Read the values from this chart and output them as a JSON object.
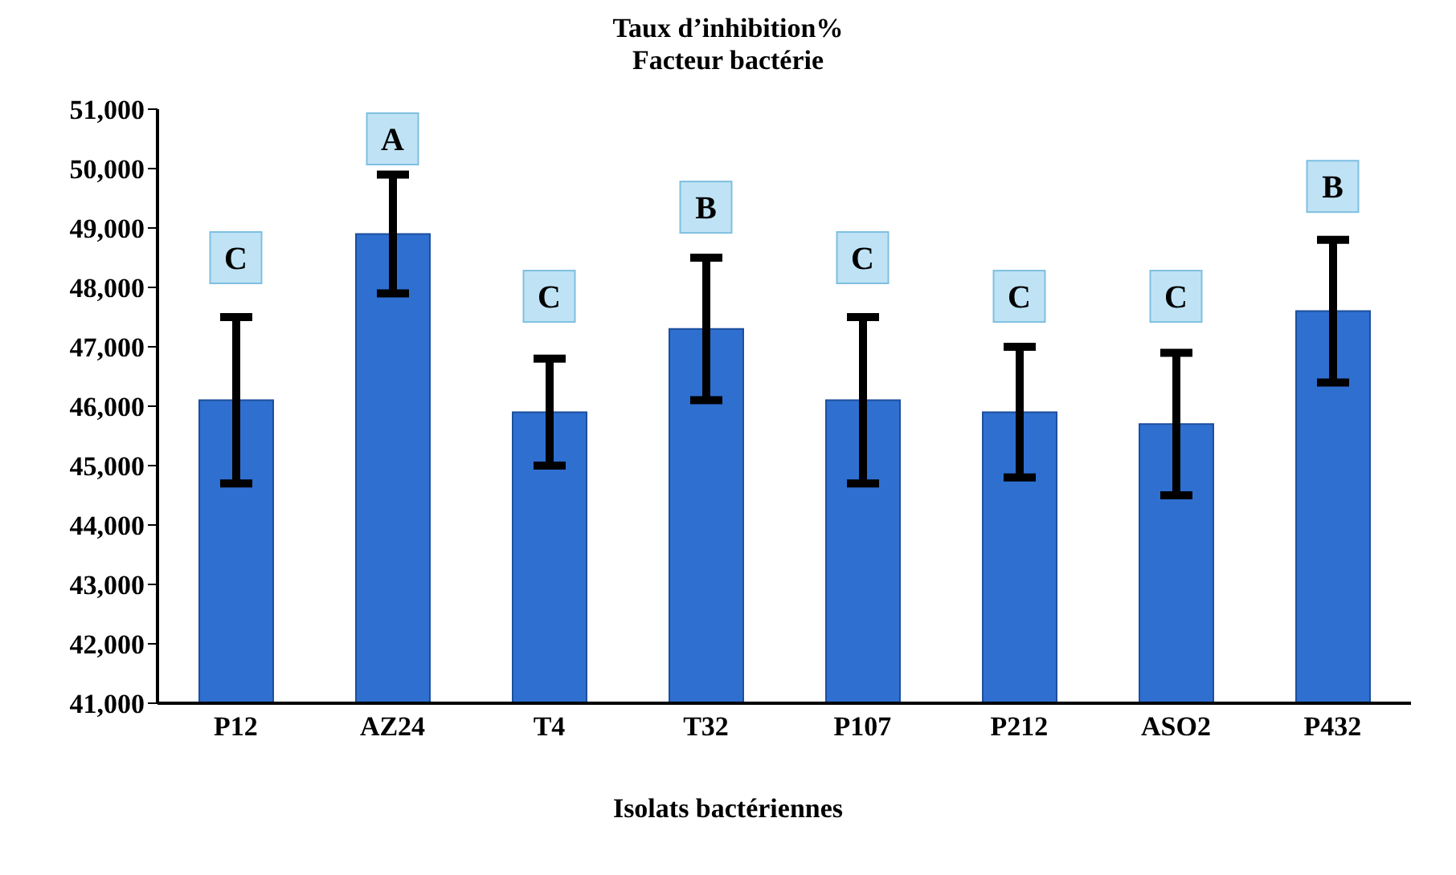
{
  "chart_data": {
    "type": "bar",
    "title": "Taux d’inhibition%",
    "subtitle": "Facteur bactérie",
    "xlabel": "Isolats bactériennes",
    "categories": [
      "P12",
      "AZ24",
      "T4",
      "T32",
      "P107",
      "P212",
      "ASO2",
      "P432"
    ],
    "values": [
      46100,
      48900,
      45900,
      47300,
      46100,
      45900,
      45700,
      47600
    ],
    "errors": [
      1400,
      1000,
      900,
      1200,
      1400,
      1100,
      1200,
      1200
    ],
    "color": "#2f6fd0",
    "ylim": [
      41000,
      51000
    ],
    "yticks": [
      {
        "value": 41000,
        "label": "41,000"
      },
      {
        "value": 42000,
        "label": "42,000"
      },
      {
        "value": 43000,
        "label": "43,000"
      },
      {
        "value": 44000,
        "label": "44,000"
      },
      {
        "value": 45000,
        "label": "45,000"
      },
      {
        "value": 46000,
        "label": "46,000"
      },
      {
        "value": 47000,
        "label": "47,000"
      },
      {
        "value": 48000,
        "label": "48,000"
      },
      {
        "value": 49000,
        "label": "49,000"
      },
      {
        "value": 50000,
        "label": "50,000"
      },
      {
        "value": 51000,
        "label": "51,000"
      }
    ],
    "grid": false,
    "legend": false,
    "annotations": [
      {
        "text": "C",
        "x": "P12",
        "y": 48500
      },
      {
        "text": "A",
        "x": "AZ24",
        "y": 50500
      },
      {
        "text": "C",
        "x": "T4",
        "y": 47850
      },
      {
        "text": "B",
        "x": "T32",
        "y": 49350
      },
      {
        "text": "C",
        "x": "P107",
        "y": 48500
      },
      {
        "text": "C",
        "x": "P212",
        "y": 47850
      },
      {
        "text": "C",
        "x": "ASO2",
        "y": 47850
      },
      {
        "text": "B",
        "x": "P432",
        "y": 49700
      }
    ]
  }
}
